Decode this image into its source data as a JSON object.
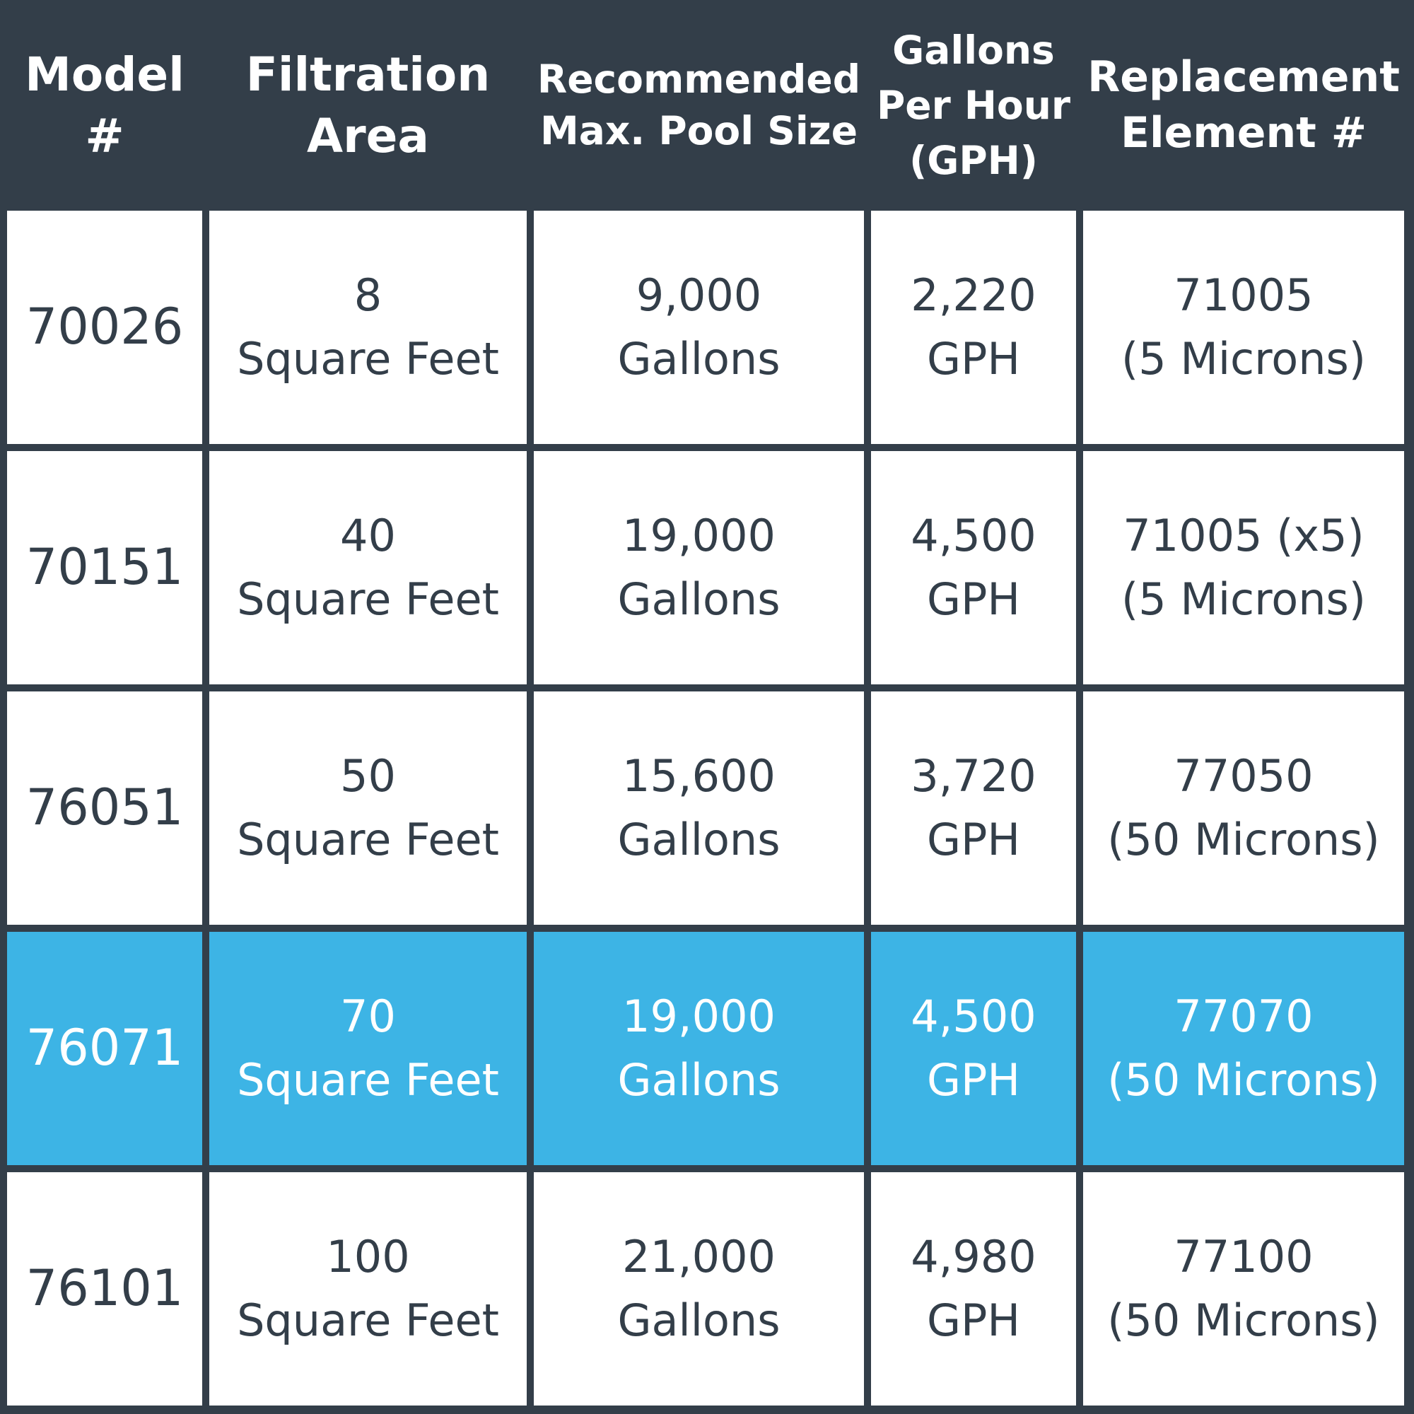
{
  "colors": {
    "header_bg": "#333e49",
    "body_bg": "#ffffff",
    "text": "#333e49",
    "highlight_bg": "#3db4e5",
    "highlight_text": "#ffffff"
  },
  "table": {
    "headers": [
      [
        "Model",
        "#"
      ],
      [
        "Filtration",
        "Area"
      ],
      [
        "Recommended",
        "Max. Pool Size"
      ],
      [
        "Gallons",
        "Per Hour",
        "(GPH)"
      ],
      [
        "Replacement",
        "Element #"
      ]
    ],
    "rows": [
      {
        "model": "70026",
        "area": [
          "8",
          "Square Feet"
        ],
        "pool": [
          "9,000",
          "Gallons"
        ],
        "gph": [
          "2,220",
          "GPH"
        ],
        "element": [
          "71005",
          "(5 Microns)"
        ],
        "highlighted": false
      },
      {
        "model": "70151",
        "area": [
          "40",
          "Square Feet"
        ],
        "pool": [
          "19,000",
          "Gallons"
        ],
        "gph": [
          "4,500",
          "GPH"
        ],
        "element": [
          "71005 (x5)",
          "(5 Microns)"
        ],
        "highlighted": false
      },
      {
        "model": "76051",
        "area": [
          "50",
          "Square Feet"
        ],
        "pool": [
          "15,600",
          "Gallons"
        ],
        "gph": [
          "3,720",
          "GPH"
        ],
        "element": [
          "77050",
          "(50 Microns)"
        ],
        "highlighted": false
      },
      {
        "model": "76071",
        "area": [
          "70",
          "Square Feet"
        ],
        "pool": [
          "19,000",
          "Gallons"
        ],
        "gph": [
          "4,500",
          "GPH"
        ],
        "element": [
          "77070",
          "(50 Microns)"
        ],
        "highlighted": true
      },
      {
        "model": "76101",
        "area": [
          "100",
          "Square Feet"
        ],
        "pool": [
          "21,000",
          "Gallons"
        ],
        "gph": [
          "4,980",
          "GPH"
        ],
        "element": [
          "77100",
          "(50 Microns)"
        ],
        "highlighted": false
      }
    ]
  }
}
